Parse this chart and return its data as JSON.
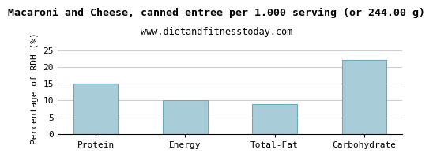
{
  "title": "Macaroni and Cheese, canned entree per 1.000 serving (or 244.00 g)",
  "subtitle": "www.dietandfitnesstoday.com",
  "categories": [
    "Protein",
    "Energy",
    "Total-Fat",
    "Carbohydrate"
  ],
  "values": [
    15.0,
    10.0,
    9.0,
    22.0
  ],
  "bar_color": "#a8cdd8",
  "bar_edge_color": "#6aaabf",
  "ylabel": "Percentage of RDH (%)",
  "ylim": [
    0,
    27
  ],
  "yticks": [
    0,
    5,
    10,
    15,
    20,
    25
  ],
  "title_fontsize": 9.5,
  "subtitle_fontsize": 8.5,
  "ylabel_fontsize": 8,
  "tick_fontsize": 8,
  "background_color": "#ffffff",
  "grid_color": "#cccccc"
}
